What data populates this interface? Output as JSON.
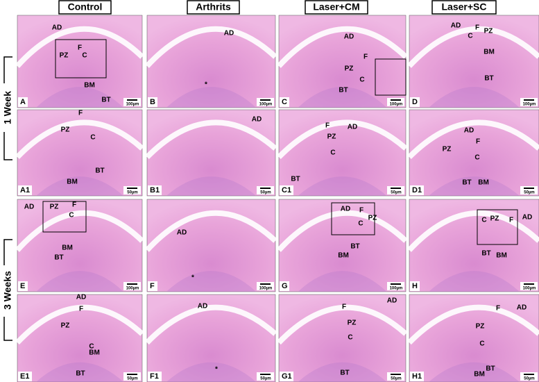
{
  "column_headers": [
    "Control",
    "Arthrits",
    "Laser+CM",
    "Laser+SC"
  ],
  "row_labels": [
    "1 Week",
    "3 Weeks"
  ],
  "panels": [
    {
      "letter": "A",
      "labels": [
        "AD",
        "F",
        "PZ",
        "C",
        "BM",
        "BT"
      ],
      "scale": "100µm"
    },
    {
      "letter": "B",
      "labels": [
        "AD",
        "*"
      ],
      "scale": "100µm"
    },
    {
      "letter": "C",
      "labels": [
        "AD",
        "F",
        "PZ",
        "C",
        "BT"
      ],
      "scale": "100µm"
    },
    {
      "letter": "D",
      "labels": [
        "AD",
        "C",
        "F",
        "PZ",
        "BM",
        "BT"
      ],
      "scale": "100µm"
    },
    {
      "letter": "A1",
      "labels": [
        "F",
        "PZ",
        "C",
        "BM",
        "BT"
      ],
      "scale": "50µm"
    },
    {
      "letter": "B1",
      "labels": [
        "AD"
      ],
      "scale": "50µm"
    },
    {
      "letter": "C1",
      "labels": [
        "F",
        "AD",
        "PZ",
        "C",
        "BT"
      ],
      "scale": "50µm"
    },
    {
      "letter": "D1",
      "labels": [
        "AD",
        "PZ",
        "F",
        "C",
        "BT",
        "BM"
      ],
      "scale": "50µm"
    },
    {
      "letter": "E",
      "labels": [
        "AD",
        "PZ",
        "F",
        "C",
        "BM",
        "BT"
      ],
      "scale": "100µm"
    },
    {
      "letter": "F",
      "labels": [
        "AD",
        "*"
      ],
      "scale": "100µm"
    },
    {
      "letter": "G",
      "labels": [
        "AD",
        "F",
        "C",
        "PZ",
        "BT",
        "BM"
      ],
      "scale": "100µm"
    },
    {
      "letter": "H",
      "labels": [
        "C",
        "PZ",
        "F",
        "AD",
        "BT",
        "BM"
      ],
      "scale": "100µm"
    },
    {
      "letter": "E1",
      "labels": [
        "AD",
        "F",
        "PZ",
        "C",
        "BM",
        "BT"
      ],
      "scale": "50µm"
    },
    {
      "letter": "F1",
      "labels": [
        "AD",
        "*"
      ],
      "scale": "50µm"
    },
    {
      "letter": "G1",
      "labels": [
        "AD",
        "F",
        "PZ",
        "C",
        "BT"
      ],
      "scale": "50µm"
    },
    {
      "letter": "H1",
      "labels": [
        "F",
        "AD",
        "PZ",
        "C",
        "BT",
        "BM"
      ],
      "scale": "50µm"
    }
  ]
}
